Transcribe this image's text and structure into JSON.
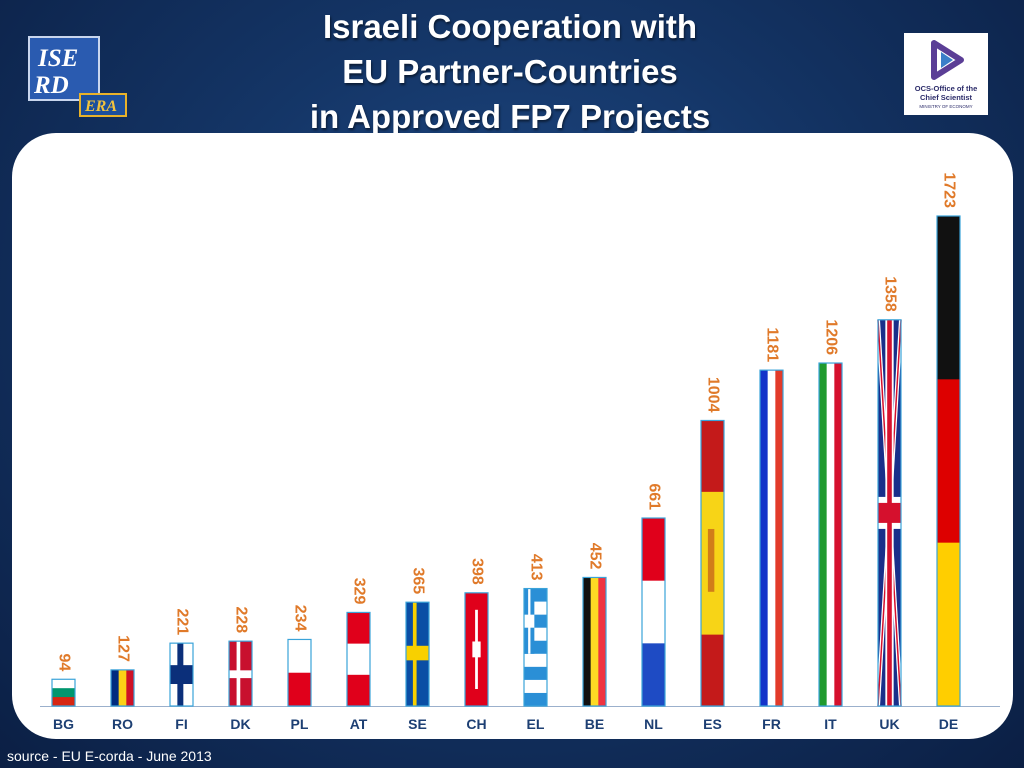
{
  "title_lines": [
    "Israeli Cooperation with",
    "EU Partner-Countries",
    "in Approved FP7 Projects"
  ],
  "logo_left": {
    "name": "ISERD ERA logo",
    "text": [
      "ISE",
      "RD",
      "ERA"
    ]
  },
  "logo_right": {
    "text": [
      "OCS-Office of the",
      "Chief Scientist",
      "MINISTRY OF ECONOMY"
    ]
  },
  "source": "source - EU E-corda - June 2013",
  "chart_data": {
    "type": "bar",
    "title": "Israeli Cooperation with EU Partner-Countries in Approved FP7 Projects",
    "xlabel": "",
    "ylabel": "",
    "ylim": [
      0,
      1723
    ],
    "categories": [
      "BG",
      "RO",
      "FI",
      "DK",
      "PL",
      "AT",
      "SE",
      "CH",
      "EL",
      "BE",
      "NL",
      "ES",
      "FR",
      "IT",
      "UK",
      "DE"
    ],
    "values": [
      94,
      127,
      221,
      228,
      234,
      329,
      365,
      398,
      413,
      452,
      661,
      1004,
      1181,
      1206,
      1358,
      1723
    ],
    "bar_fill": "national flag of each country",
    "label_color": "#e07a2a",
    "tick_label_color": "#1d3f73",
    "grid": false,
    "legend": "none"
  }
}
